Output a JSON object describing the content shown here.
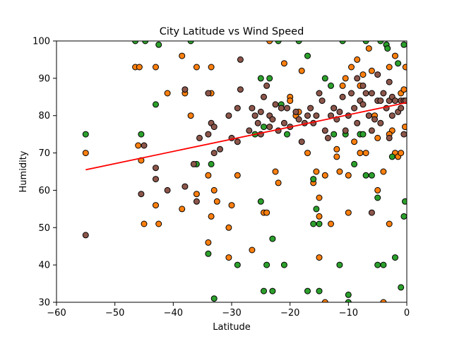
{
  "chart_data": {
    "type": "scatter",
    "title": "City Latitude vs Wind Speed",
    "xlabel": "Latitude",
    "ylabel": "Humidity",
    "xlim": [
      -60,
      0
    ],
    "ylim": [
      30,
      100
    ],
    "xticks": [
      -60,
      -50,
      -40,
      -30,
      -20,
      -10,
      0
    ],
    "yticks": [
      30,
      40,
      50,
      60,
      70,
      80,
      90,
      100
    ],
    "grid": false,
    "legend": "none",
    "colors": {
      "orange": "#ff7f0e",
      "green": "#2ca02c",
      "brown": "#8c564b",
      "regression": "#ff0000"
    },
    "series": [
      {
        "color": "orange",
        "points": [
          [
            -55,
            70
          ],
          [
            -46.5,
            93
          ],
          [
            -45.8,
            93
          ],
          [
            -46,
            72
          ],
          [
            -45.5,
            68
          ],
          [
            -45,
            51
          ],
          [
            -43,
            93
          ],
          [
            -43,
            56
          ],
          [
            -42.5,
            51
          ],
          [
            -41,
            86
          ],
          [
            -38.5,
            96
          ],
          [
            -38,
            86
          ],
          [
            -37,
            80
          ],
          [
            -38.5,
            55
          ],
          [
            -36,
            93
          ],
          [
            -36,
            59
          ],
          [
            -34,
            64
          ],
          [
            -34,
            46
          ],
          [
            -33.5,
            93
          ],
          [
            -33.5,
            86
          ],
          [
            -33.5,
            53
          ],
          [
            -33,
            60
          ],
          [
            -32.5,
            57
          ],
          [
            -30.5,
            50
          ],
          [
            -30.5,
            42
          ],
          [
            -30,
            56
          ],
          [
            -29,
            64
          ],
          [
            -26.5,
            44
          ],
          [
            -24.5,
            54
          ],
          [
            -24,
            54
          ],
          [
            -23.5,
            100
          ],
          [
            -22.5,
            65
          ],
          [
            -22,
            62
          ],
          [
            -21,
            94
          ],
          [
            -20,
            85
          ],
          [
            -19,
            80
          ],
          [
            -18,
            92
          ],
          [
            -17,
            70
          ],
          [
            -16,
            62
          ],
          [
            -15.5,
            65
          ],
          [
            -15,
            58
          ],
          [
            -15,
            53
          ],
          [
            -15,
            42
          ],
          [
            -14,
            64
          ],
          [
            -14,
            30
          ],
          [
            -13,
            51
          ],
          [
            -12.5,
            82
          ],
          [
            -12,
            71
          ],
          [
            -12,
            69
          ],
          [
            -11.5,
            65
          ],
          [
            -11,
            88
          ],
          [
            -10.5,
            90
          ],
          [
            -10,
            64
          ],
          [
            -10,
            54
          ],
          [
            -9.5,
            93
          ],
          [
            -9,
            73
          ],
          [
            -8.5,
            95
          ],
          [
            -8,
            88
          ],
          [
            -8,
            70
          ],
          [
            -7.5,
            91
          ],
          [
            -7,
            70
          ],
          [
            -6.5,
            98
          ],
          [
            -6,
            92
          ],
          [
            -5.5,
            80
          ],
          [
            -5,
            74
          ],
          [
            -5,
            60
          ],
          [
            -4,
            65
          ],
          [
            -4,
            30
          ],
          [
            -3.5,
            99
          ],
          [
            -3,
            93
          ],
          [
            -3,
            51
          ],
          [
            -2,
            96
          ],
          [
            -2,
            70
          ],
          [
            -1.5,
            69
          ],
          [
            -1,
            86
          ],
          [
            -0.5,
            87
          ],
          [
            -0.3,
            77
          ],
          [
            -0.2,
            93
          ],
          [
            -2.5,
            76
          ],
          [
            -3,
            75
          ],
          [
            -1,
            70
          ],
          [
            -20,
            84
          ],
          [
            -18.5,
            81
          ]
        ]
      },
      {
        "color": "green",
        "points": [
          [
            -55,
            75
          ],
          [
            -46.5,
            100
          ],
          [
            -45.5,
            75
          ],
          [
            -44.8,
            100
          ],
          [
            -43,
            83
          ],
          [
            -42.5,
            99
          ],
          [
            -37,
            100
          ],
          [
            -36,
            67
          ],
          [
            -34,
            43
          ],
          [
            -33.5,
            67
          ],
          [
            -33,
            31
          ],
          [
            -29,
            40
          ],
          [
            -26,
            75
          ],
          [
            -25,
            90
          ],
          [
            -25,
            57
          ],
          [
            -24.5,
            33
          ],
          [
            -24,
            40
          ],
          [
            -23.5,
            90
          ],
          [
            -23,
            33
          ],
          [
            -23,
            47
          ],
          [
            -22,
            100
          ],
          [
            -21,
            40
          ],
          [
            -20.5,
            75
          ],
          [
            -18.5,
            100
          ],
          [
            -17,
            96
          ],
          [
            -16,
            63
          ],
          [
            -16,
            51
          ],
          [
            -15.5,
            55
          ],
          [
            -15,
            33
          ],
          [
            -13,
            88
          ],
          [
            -12.5,
            75
          ],
          [
            -11.5,
            40
          ],
          [
            -11,
            100
          ],
          [
            -10.5,
            75
          ],
          [
            -10,
            32
          ],
          [
            -10,
            30
          ],
          [
            -9,
            67
          ],
          [
            -8,
            75
          ],
          [
            -7.5,
            75
          ],
          [
            -7,
            100
          ],
          [
            -6,
            64
          ],
          [
            -5,
            58
          ],
          [
            -5,
            40
          ],
          [
            -4.5,
            100
          ],
          [
            -4,
            40
          ],
          [
            -3.5,
            99
          ],
          [
            -3.3,
            98
          ],
          [
            -2.5,
            69
          ],
          [
            -2,
            42
          ],
          [
            -1.5,
            94
          ],
          [
            -1,
            34
          ],
          [
            -0.5,
            53
          ],
          [
            -0.3,
            57
          ],
          [
            -0.5,
            99
          ],
          [
            -17,
            33
          ],
          [
            -14,
            90
          ],
          [
            -15,
            51
          ],
          [
            -21.5,
            83
          ],
          [
            -24.5,
            77
          ],
          [
            -7,
            64
          ]
        ]
      },
      {
        "color": "brown",
        "points": [
          [
            -55,
            48
          ],
          [
            -45.5,
            59
          ],
          [
            -45,
            72
          ],
          [
            -43,
            66
          ],
          [
            -43,
            63
          ],
          [
            -41,
            60
          ],
          [
            -38,
            61
          ],
          [
            -38,
            87
          ],
          [
            -36.5,
            67
          ],
          [
            -36,
            57
          ],
          [
            -35.5,
            74
          ],
          [
            -34,
            86
          ],
          [
            -34,
            75
          ],
          [
            -33.5,
            78
          ],
          [
            -33,
            77
          ],
          [
            -33,
            70
          ],
          [
            -32,
            71
          ],
          [
            -30.5,
            80
          ],
          [
            -30,
            74
          ],
          [
            -29,
            73
          ],
          [
            -29,
            82
          ],
          [
            -28.5,
            95
          ],
          [
            -28.5,
            87
          ],
          [
            -27,
            76
          ],
          [
            -26.5,
            82
          ],
          [
            -26,
            80
          ],
          [
            -25.5,
            78
          ],
          [
            -25,
            81
          ],
          [
            -25,
            75
          ],
          [
            -24.5,
            85
          ],
          [
            -24,
            88
          ],
          [
            -23.5,
            80
          ],
          [
            -23.5,
            77
          ],
          [
            -23,
            79
          ],
          [
            -22.5,
            83
          ],
          [
            -22,
            76
          ],
          [
            -21.5,
            82
          ],
          [
            -21,
            78
          ],
          [
            -20.5,
            82
          ],
          [
            -20,
            77
          ],
          [
            -19,
            81
          ],
          [
            -18.5,
            79
          ],
          [
            -18,
            73
          ],
          [
            -17.5,
            78
          ],
          [
            -17,
            80
          ],
          [
            -16.5,
            82
          ],
          [
            -16,
            78
          ],
          [
            -15.5,
            80
          ],
          [
            -15,
            86
          ],
          [
            -14.5,
            84
          ],
          [
            -14,
            76
          ],
          [
            -13.5,
            74
          ],
          [
            -13,
            80
          ],
          [
            -12.5,
            82
          ],
          [
            -12,
            79
          ],
          [
            -11.5,
            81
          ],
          [
            -11,
            85
          ],
          [
            -10.5,
            76
          ],
          [
            -10,
            80
          ],
          [
            -9.5,
            86
          ],
          [
            -9,
            82
          ],
          [
            -8.5,
            78
          ],
          [
            -8,
            84
          ],
          [
            -7.5,
            83
          ],
          [
            -7,
            86
          ],
          [
            -6.5,
            80
          ],
          [
            -6,
            76
          ],
          [
            -6,
            54
          ],
          [
            -5.5,
            79
          ],
          [
            -5,
            84
          ],
          [
            -5,
            91
          ],
          [
            -4.5,
            84
          ],
          [
            -4,
            86
          ],
          [
            -3.5,
            82
          ],
          [
            -3,
            84
          ],
          [
            -3,
            89
          ],
          [
            -2.5,
            80
          ],
          [
            -2.5,
            85
          ],
          [
            -2,
            84
          ],
          [
            -1.5,
            81
          ],
          [
            -1,
            84
          ],
          [
            -1,
            82
          ],
          [
            -0.5,
            75
          ],
          [
            -0.5,
            84
          ],
          [
            -0.2,
            84
          ],
          [
            -3,
            74
          ],
          [
            -4.5,
            78
          ],
          [
            -6,
            86
          ],
          [
            -7.5,
            88
          ],
          [
            -8.5,
            90
          ]
        ]
      }
    ],
    "regression": {
      "x": [
        -55,
        0
      ],
      "y": [
        65.5,
        83.5
      ]
    }
  }
}
